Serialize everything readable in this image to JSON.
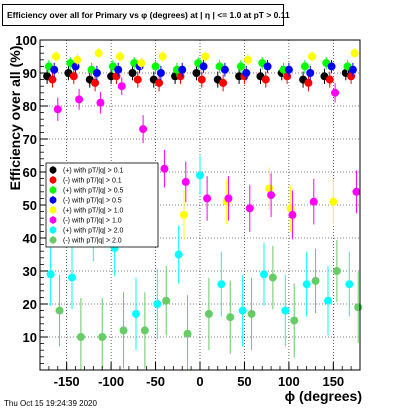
{
  "chart_data": {
    "type": "scatter",
    "title": "Efficiency over all for Primary vs φ (degrees) at | η | <= 1.0 at pT > 0.11",
    "xlabel": "ϕ (degrees)",
    "ylabel": "Efficiency over all (%)",
    "xlim": [
      -180,
      180
    ],
    "ylim": [
      0,
      100
    ],
    "x_ticks": [
      -150,
      -100,
      -50,
      0,
      50,
      100,
      150
    ],
    "y_ticks": [
      10,
      20,
      30,
      40,
      50,
      60,
      70,
      80,
      90,
      100
    ],
    "grid": true,
    "legend_position": "left, mid-height",
    "series": [
      {
        "name": "(+) with pT/|q| > 0.1",
        "color": "#000000",
        "x": [
          -172,
          -148,
          -124,
          -100,
          -76,
          -52,
          -28,
          -4,
          20,
          44,
          68,
          92,
          116,
          140,
          164
        ],
        "y": [
          89,
          90,
          88,
          89,
          90,
          88,
          89,
          90,
          88,
          89,
          89,
          90,
          88,
          89,
          90
        ]
      },
      {
        "name": "(-) with pT/|q| > 0.1",
        "color": "#ff0000",
        "x": [
          -166,
          -142,
          -118,
          -94,
          -70,
          -46,
          -22,
          2,
          26,
          50,
          74,
          98,
          122,
          146,
          170
        ],
        "y": [
          88,
          89,
          87,
          89,
          88,
          87,
          89,
          88,
          87,
          89,
          88,
          89,
          87,
          88,
          89
        ]
      },
      {
        "name": "(+) with pT/|q| > 0.5",
        "color": "#00ff00",
        "x": [
          -170,
          -146,
          -122,
          -98,
          -74,
          -50,
          -26,
          -2,
          22,
          46,
          70,
          94,
          118,
          142,
          166
        ],
        "y": [
          92,
          93,
          91,
          92,
          93,
          92,
          91,
          93,
          92,
          92,
          93,
          91,
          92,
          93,
          92
        ]
      },
      {
        "name": "(-) with pT/|q| > 0.5",
        "color": "#0000ff",
        "x": [
          -164,
          -140,
          -116,
          -92,
          -68,
          -44,
          -20,
          4,
          28,
          52,
          76,
          100,
          124,
          148,
          172
        ],
        "y": [
          91,
          92,
          90,
          91,
          92,
          90,
          91,
          92,
          91,
          90,
          92,
          91,
          90,
          92,
          91
        ]
      },
      {
        "name": "(+) with pT/|q| > 1.0",
        "color": "#ffff00",
        "x": [
          -162,
          -138,
          -114,
          -90,
          -66,
          -42,
          -18,
          6,
          30,
          54,
          78,
          102,
          126,
          150,
          174
        ],
        "y": [
          95,
          94,
          96,
          95,
          93,
          95,
          47,
          95,
          51,
          94,
          55,
          49,
          95,
          51,
          96
        ]
      },
      {
        "name": "(-) with pT/|q| > 1.0",
        "color": "#ff00ff",
        "x": [
          -160,
          -136,
          -112,
          -88,
          -64,
          -40,
          -16,
          8,
          32,
          56,
          80,
          104,
          128,
          152,
          176
        ],
        "y": [
          79,
          82,
          81,
          86,
          73,
          61,
          57,
          52,
          52,
          49,
          53,
          47,
          51,
          84,
          54
        ]
      },
      {
        "name": "(+) with pT/|q| > 2.0",
        "color": "#00ffff",
        "x": [
          -168,
          -144,
          -120,
          -96,
          -72,
          -48,
          -24,
          0,
          24,
          48,
          72,
          96,
          120,
          144,
          168
        ],
        "y": [
          29,
          28,
          41,
          37,
          17,
          20,
          35,
          59,
          26,
          18,
          29,
          18,
          26,
          21,
          26
        ]
      },
      {
        "name": "(-) with pT/|q| > 2.0",
        "color": "#66cc66",
        "x": [
          -158,
          -134,
          -110,
          -86,
          -62,
          -38,
          -14,
          10,
          34,
          58,
          82,
          106,
          130,
          154,
          178
        ],
        "y": [
          18,
          10,
          10,
          12,
          12,
          21,
          11,
          17,
          16,
          17,
          28,
          15,
          27,
          30,
          19
        ]
      }
    ]
  },
  "timestamp": "Thu Oct 15 19:24:39 2020"
}
